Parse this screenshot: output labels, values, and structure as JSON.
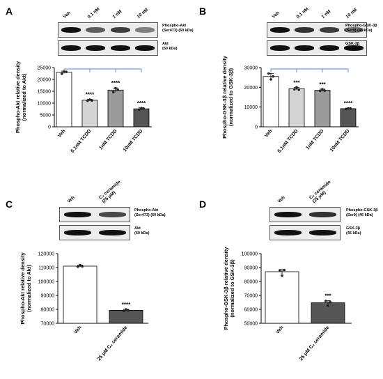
{
  "panels": [
    {
      "letter": "A",
      "lanes": [
        "Veh",
        "0.1 nM",
        "1 nM",
        "10 nM"
      ],
      "blots": [
        {
          "label": "Phospho-Akt\n(Ser473) (60 kDa)",
          "intensity": [
            1.0,
            0.65,
            0.8,
            0.5
          ]
        },
        {
          "label": "Akt\n(60 kDa)",
          "intensity": [
            1.0,
            1.0,
            1.0,
            1.0
          ]
        }
      ]
    },
    {
      "letter": "B",
      "lanes": [
        "Veh",
        "0.1 nM",
        "1 nM",
        "10 nM"
      ],
      "blots": [
        {
          "label": "Phospho-GSK-3β\n(Ser9) (46 kDa)",
          "intensity": [
            1.0,
            0.85,
            0.8,
            0.55
          ]
        },
        {
          "label": "GSK-3β\n(46 kDa)",
          "intensity": [
            1.0,
            1.0,
            1.0,
            1.0
          ]
        }
      ]
    },
    {
      "letter": "C",
      "lanes": [
        "Veh",
        "C₂ ceramide\n(25 μM)"
      ],
      "blots": [
        {
          "label": "Phospho-Akt\n(Ser473) (60 kDa)",
          "intensity": [
            1.0,
            0.75
          ]
        },
        {
          "label": "Akt\n(60 kDa)",
          "intensity": [
            1.0,
            1.0
          ]
        }
      ]
    },
    {
      "letter": "D",
      "lanes": [
        "Veh",
        "C₂ ceramide\n(25 μM)"
      ],
      "blots": [
        {
          "label": "Phospho-GSK-3β\n(Ser9) (46 kDa)",
          "intensity": [
            1.0,
            0.85
          ]
        },
        {
          "label": "GSK-3β\n(46 kDa)",
          "intensity": [
            1.0,
            1.0
          ]
        }
      ]
    }
  ],
  "chart_data": [
    {
      "type": "bar",
      "ylabel": "Phospho-Akt relative density\n(normalized to Akt)",
      "categories": [
        "Veh",
        "0.1nM TCDD",
        "1nM TCDD",
        "10nM TCDD"
      ],
      "values": [
        23000,
        11200,
        15500,
        7600
      ],
      "errors": [
        500,
        400,
        900,
        400
      ],
      "points": [
        [
          22400,
          23300,
          23200
        ],
        [
          11000,
          11500,
          11100
        ],
        [
          14600,
          16300,
          15600
        ],
        [
          7200,
          7900,
          7700
        ]
      ],
      "significance": [
        "",
        "****",
        "****",
        "****"
      ],
      "ylim": [
        0,
        25000
      ],
      "yticks": [
        0,
        5000,
        10000,
        15000,
        20000,
        25000
      ],
      "colors": [
        "#ffffff",
        "#d4d4d4",
        "#9b9b9b",
        "#555555"
      ],
      "comparison_bracket": true
    },
    {
      "type": "bar",
      "ylabel": "Phospho-GSK-3β relative density\n(normalized to GSK-3β)",
      "categories": [
        "Veh",
        "0.1nM TCDD",
        "1nM TCDD",
        "10nM TCDD"
      ],
      "values": [
        25500,
        19300,
        18500,
        9200
      ],
      "errors": [
        1500,
        700,
        600,
        300
      ],
      "points": [
        [
          27000,
          24000,
          25500
        ],
        [
          19000,
          20000,
          18800
        ],
        [
          18200,
          19000,
          18300
        ],
        [
          9000,
          9300,
          9300
        ]
      ],
      "significance": [
        "",
        "***",
        "***",
        "****"
      ],
      "ylim": [
        0,
        30000
      ],
      "yticks": [
        0,
        10000,
        20000,
        30000
      ],
      "colors": [
        "#ffffff",
        "#d4d4d4",
        "#9b9b9b",
        "#555555"
      ],
      "comparison_bracket": true
    },
    {
      "type": "bar",
      "ylabel": "Phospho-Akt relative density\n(normalized to Akt)",
      "categories": [
        "Veh",
        "25 μM C₂ ceramide"
      ],
      "values": [
        111000,
        79300
      ],
      "errors": [
        800,
        700
      ],
      "points": [
        [
          110600,
          111700,
          110800
        ],
        [
          78800,
          80000,
          79200
        ]
      ],
      "significance": [
        "",
        "****"
      ],
      "ylim": [
        70000,
        120000
      ],
      "yticks": [
        70000,
        80000,
        90000,
        100000,
        110000,
        120000
      ],
      "colors": [
        "#ffffff",
        "#555555"
      ],
      "comparison_bracket": false
    },
    {
      "type": "bar",
      "ylabel": "Phospho-GSK-3β relative density\n(normalized to GSK-3β)",
      "categories": [
        "Veh",
        "25 μM C₂ ceramide"
      ],
      "values": [
        87000,
        64700
      ],
      "errors": [
        1500,
        1500
      ],
      "points": [
        [
          88000,
          84200,
          88200
        ],
        [
          66000,
          62500,
          65200
        ]
      ],
      "significance": [
        "",
        "***"
      ],
      "ylim": [
        50000,
        100000
      ],
      "yticks": [
        50000,
        60000,
        70000,
        80000,
        90000,
        100000
      ],
      "colors": [
        "#ffffff",
        "#555555"
      ],
      "comparison_bracket": false
    }
  ]
}
